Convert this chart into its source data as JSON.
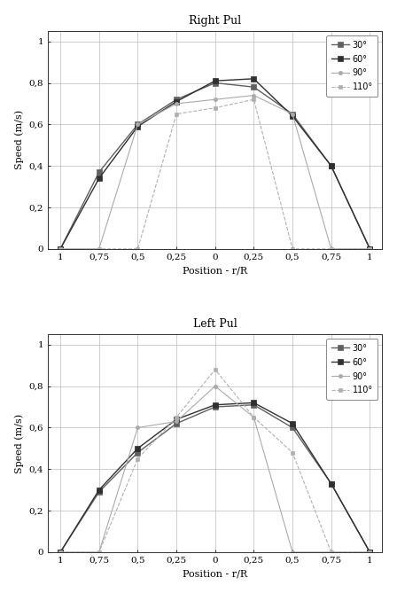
{
  "top_title": "Right Pul",
  "bottom_title": "Left Pul",
  "xlabel": "Position - r/R",
  "ylabel": "Speed (m/s)",
  "x_positions": [
    -1,
    -0.75,
    -0.5,
    -0.25,
    0,
    0.25,
    0.5,
    0.75,
    1
  ],
  "x_ticks": [
    -1,
    -0.75,
    -0.5,
    -0.25,
    0,
    0.25,
    0.5,
    0.75,
    1
  ],
  "x_tick_labels": [
    "1",
    "0,75",
    "0,5",
    "0,25",
    "0",
    "0,25",
    "0,5",
    "0,75",
    "1"
  ],
  "y_ticks": [
    0,
    0.2,
    0.4,
    0.6,
    0.8,
    1.0
  ],
  "y_tick_labels": [
    "0",
    "0,2",
    "0,4",
    "0,6",
    "0,8",
    "1"
  ],
  "legend_labels": [
    "30°",
    "60°",
    "90°",
    "110°"
  ],
  "top": {
    "series_30": [
      0,
      0.37,
      0.6,
      0.72,
      0.8,
      0.78,
      0.65,
      0.4,
      0
    ],
    "series_60": [
      0,
      0.34,
      0.59,
      0.71,
      0.81,
      0.82,
      0.64,
      0.4,
      0
    ],
    "series_90": [
      0,
      0.0,
      0.6,
      0.7,
      0.72,
      0.74,
      0.65,
      0.0,
      0
    ],
    "series_110": [
      0,
      0.0,
      0.0,
      0.65,
      0.68,
      0.72,
      0.0,
      0.0,
      0
    ]
  },
  "bottom": {
    "series_30": [
      0,
      0.29,
      0.48,
      0.62,
      0.7,
      0.71,
      0.6,
      0.33,
      0
    ],
    "series_60": [
      0,
      0.3,
      0.5,
      0.64,
      0.71,
      0.72,
      0.62,
      0.33,
      0
    ],
    "series_90": [
      0,
      0.0,
      0.6,
      0.63,
      0.8,
      0.65,
      0.0,
      0.0,
      0
    ],
    "series_110": [
      0,
      0.0,
      0.45,
      0.65,
      0.88,
      0.65,
      0.48,
      0.0,
      0
    ]
  },
  "series_configs": [
    {
      "key": "30",
      "color": "#606060",
      "linestyle": "-",
      "marker": "s",
      "markersize": 4,
      "linewidth": 1.0,
      "markerfacecolor": "#606060"
    },
    {
      "key": "60",
      "color": "#303030",
      "linestyle": "-",
      "marker": "s",
      "markersize": 4,
      "linewidth": 1.0,
      "markerfacecolor": "#303030"
    },
    {
      "key": "90",
      "color": "#aaaaaa",
      "linestyle": "-",
      "marker": "o",
      "markersize": 3,
      "linewidth": 0.8,
      "markerfacecolor": "#aaaaaa"
    },
    {
      "key": "110",
      "color": "#b0b0b0",
      "linestyle": "--",
      "marker": "s",
      "markersize": 3,
      "linewidth": 0.8,
      "markerfacecolor": "#b0b0b0"
    }
  ],
  "bg_color": "#ffffff",
  "grid_color": "#bbbbbb",
  "spine_color": "#333333",
  "title_fontsize": 9,
  "label_fontsize": 8,
  "tick_fontsize": 7.5,
  "legend_fontsize": 7
}
